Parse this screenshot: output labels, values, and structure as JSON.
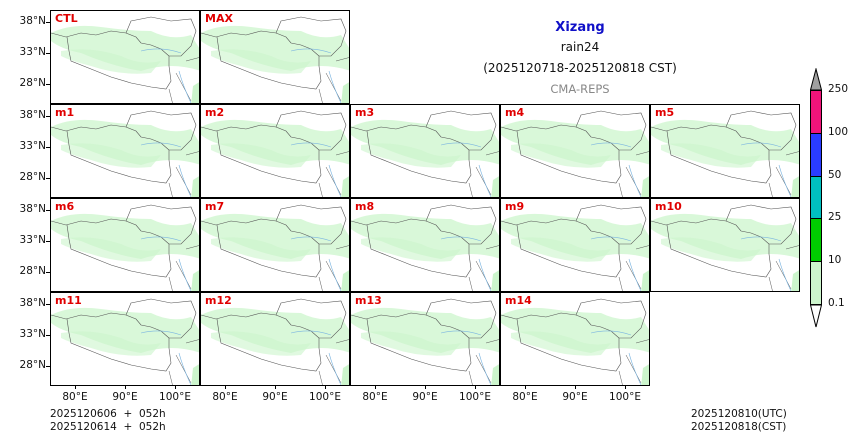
{
  "chart_data": {
    "type": "heatmap",
    "title": "Xizang",
    "subtitle": "rain24",
    "period": "(2025120718-2025120818 CST)",
    "source": "CMA-REPS",
    "panels": [
      "CTL",
      "MAX",
      "m1",
      "m2",
      "m3",
      "m4",
      "m5",
      "m6",
      "m7",
      "m8",
      "m9",
      "m10",
      "m11",
      "m12",
      "m13",
      "m14"
    ],
    "yticks": [
      "38°N",
      "33°N",
      "28°N"
    ],
    "xticks": [
      "80°E",
      "90°E",
      "100°E"
    ],
    "colorbar": {
      "levels": [
        "0.1",
        "10",
        "25",
        "50",
        "100",
        "250"
      ],
      "colors": [
        "#ccf5cc",
        "#00cc00",
        "#00bfbf",
        "#2a3cff",
        "#f0147a",
        "#a0a0a0"
      ],
      "extend": "both"
    },
    "dominant_category": "0.1-10 mm (light green) across central Tibetan Plateau"
  },
  "title": {
    "region": "Xizang",
    "variable": "rain24",
    "period": "(2025120718-2025120818 CST)",
    "model": "CMA-REPS"
  },
  "footer": {
    "init_line1": "2025120606  +  052h",
    "init_line2": "2025120614  +  052h",
    "valid_utc": "2025120810(UTC)",
    "valid_cst": "2025120818(CST)"
  }
}
